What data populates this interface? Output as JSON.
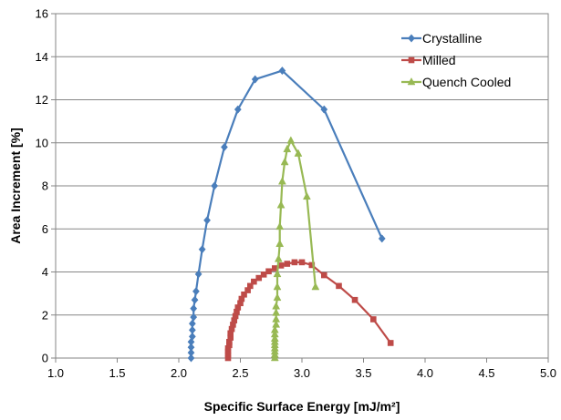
{
  "chart_data": {
    "type": "scatter",
    "xlabel": "Specific Surface Energy [mJ/m²]",
    "ylabel": "Area Increment [%]",
    "xlim": [
      1.0,
      5.0
    ],
    "ylim": [
      0,
      16
    ],
    "x_ticks": [
      "1.0",
      "1.5",
      "2.0",
      "2.5",
      "3.0",
      "3.5",
      "4.0",
      "4.5",
      "5.0"
    ],
    "y_ticks": [
      "0",
      "2",
      "4",
      "6",
      "8",
      "10",
      "12",
      "14",
      "16"
    ],
    "grid": "horizontal",
    "legend_position": "top-right",
    "series": [
      {
        "name": "Crystalline",
        "color": "#4a7ebb",
        "marker": "diamond",
        "points": [
          [
            2.1,
            0.0
          ],
          [
            2.1,
            0.25
          ],
          [
            2.1,
            0.5
          ],
          [
            2.1,
            0.75
          ],
          [
            2.11,
            1.0
          ],
          [
            2.11,
            1.3
          ],
          [
            2.11,
            1.6
          ],
          [
            2.12,
            1.9
          ],
          [
            2.12,
            2.3
          ],
          [
            2.13,
            2.7
          ],
          [
            2.14,
            3.1
          ],
          [
            2.16,
            3.9
          ],
          [
            2.19,
            5.05
          ],
          [
            2.23,
            6.4
          ],
          [
            2.29,
            8.0
          ],
          [
            2.37,
            9.8
          ],
          [
            2.48,
            11.55
          ],
          [
            2.62,
            12.95
          ],
          [
            2.84,
            13.35
          ],
          [
            3.18,
            11.55
          ],
          [
            3.65,
            5.55
          ]
        ]
      },
      {
        "name": "Milled",
        "color": "#be4b48",
        "marker": "square",
        "points": [
          [
            2.4,
            0.0
          ],
          [
            2.4,
            0.15
          ],
          [
            2.4,
            0.3
          ],
          [
            2.4,
            0.45
          ],
          [
            2.41,
            0.6
          ],
          [
            2.41,
            0.75
          ],
          [
            2.42,
            0.95
          ],
          [
            2.42,
            1.15
          ],
          [
            2.43,
            1.35
          ],
          [
            2.44,
            1.55
          ],
          [
            2.45,
            1.75
          ],
          [
            2.46,
            1.95
          ],
          [
            2.47,
            2.15
          ],
          [
            2.48,
            2.35
          ],
          [
            2.5,
            2.55
          ],
          [
            2.51,
            2.75
          ],
          [
            2.53,
            2.95
          ],
          [
            2.56,
            3.15
          ],
          [
            2.58,
            3.35
          ],
          [
            2.61,
            3.55
          ],
          [
            2.65,
            3.72
          ],
          [
            2.69,
            3.88
          ],
          [
            2.73,
            4.03
          ],
          [
            2.78,
            4.17
          ],
          [
            2.83,
            4.3
          ],
          [
            2.88,
            4.38
          ],
          [
            2.94,
            4.45
          ],
          [
            3.0,
            4.45
          ],
          [
            3.08,
            4.32
          ],
          [
            3.18,
            3.85
          ],
          [
            3.3,
            3.35
          ],
          [
            3.43,
            2.7
          ],
          [
            3.58,
            1.8
          ],
          [
            3.72,
            0.7
          ]
        ]
      },
      {
        "name": "Quench Cooled",
        "color": "#98b954",
        "marker": "triangle",
        "points": [
          [
            2.78,
            0.0
          ],
          [
            2.78,
            0.15
          ],
          [
            2.78,
            0.3
          ],
          [
            2.78,
            0.45
          ],
          [
            2.78,
            0.6
          ],
          [
            2.78,
            0.75
          ],
          [
            2.78,
            0.9
          ],
          [
            2.78,
            1.1
          ],
          [
            2.78,
            1.3
          ],
          [
            2.79,
            1.55
          ],
          [
            2.79,
            1.8
          ],
          [
            2.79,
            2.1
          ],
          [
            2.79,
            2.4
          ],
          [
            2.8,
            2.8
          ],
          [
            2.8,
            3.3
          ],
          [
            2.8,
            3.9
          ],
          [
            2.81,
            4.6
          ],
          [
            2.82,
            5.3
          ],
          [
            2.82,
            6.1
          ],
          [
            2.83,
            7.1
          ],
          [
            2.84,
            8.2
          ],
          [
            2.86,
            9.1
          ],
          [
            2.88,
            9.7
          ],
          [
            2.91,
            10.1
          ],
          [
            2.97,
            9.5
          ],
          [
            3.04,
            7.5
          ],
          [
            3.11,
            3.3
          ]
        ]
      }
    ]
  }
}
